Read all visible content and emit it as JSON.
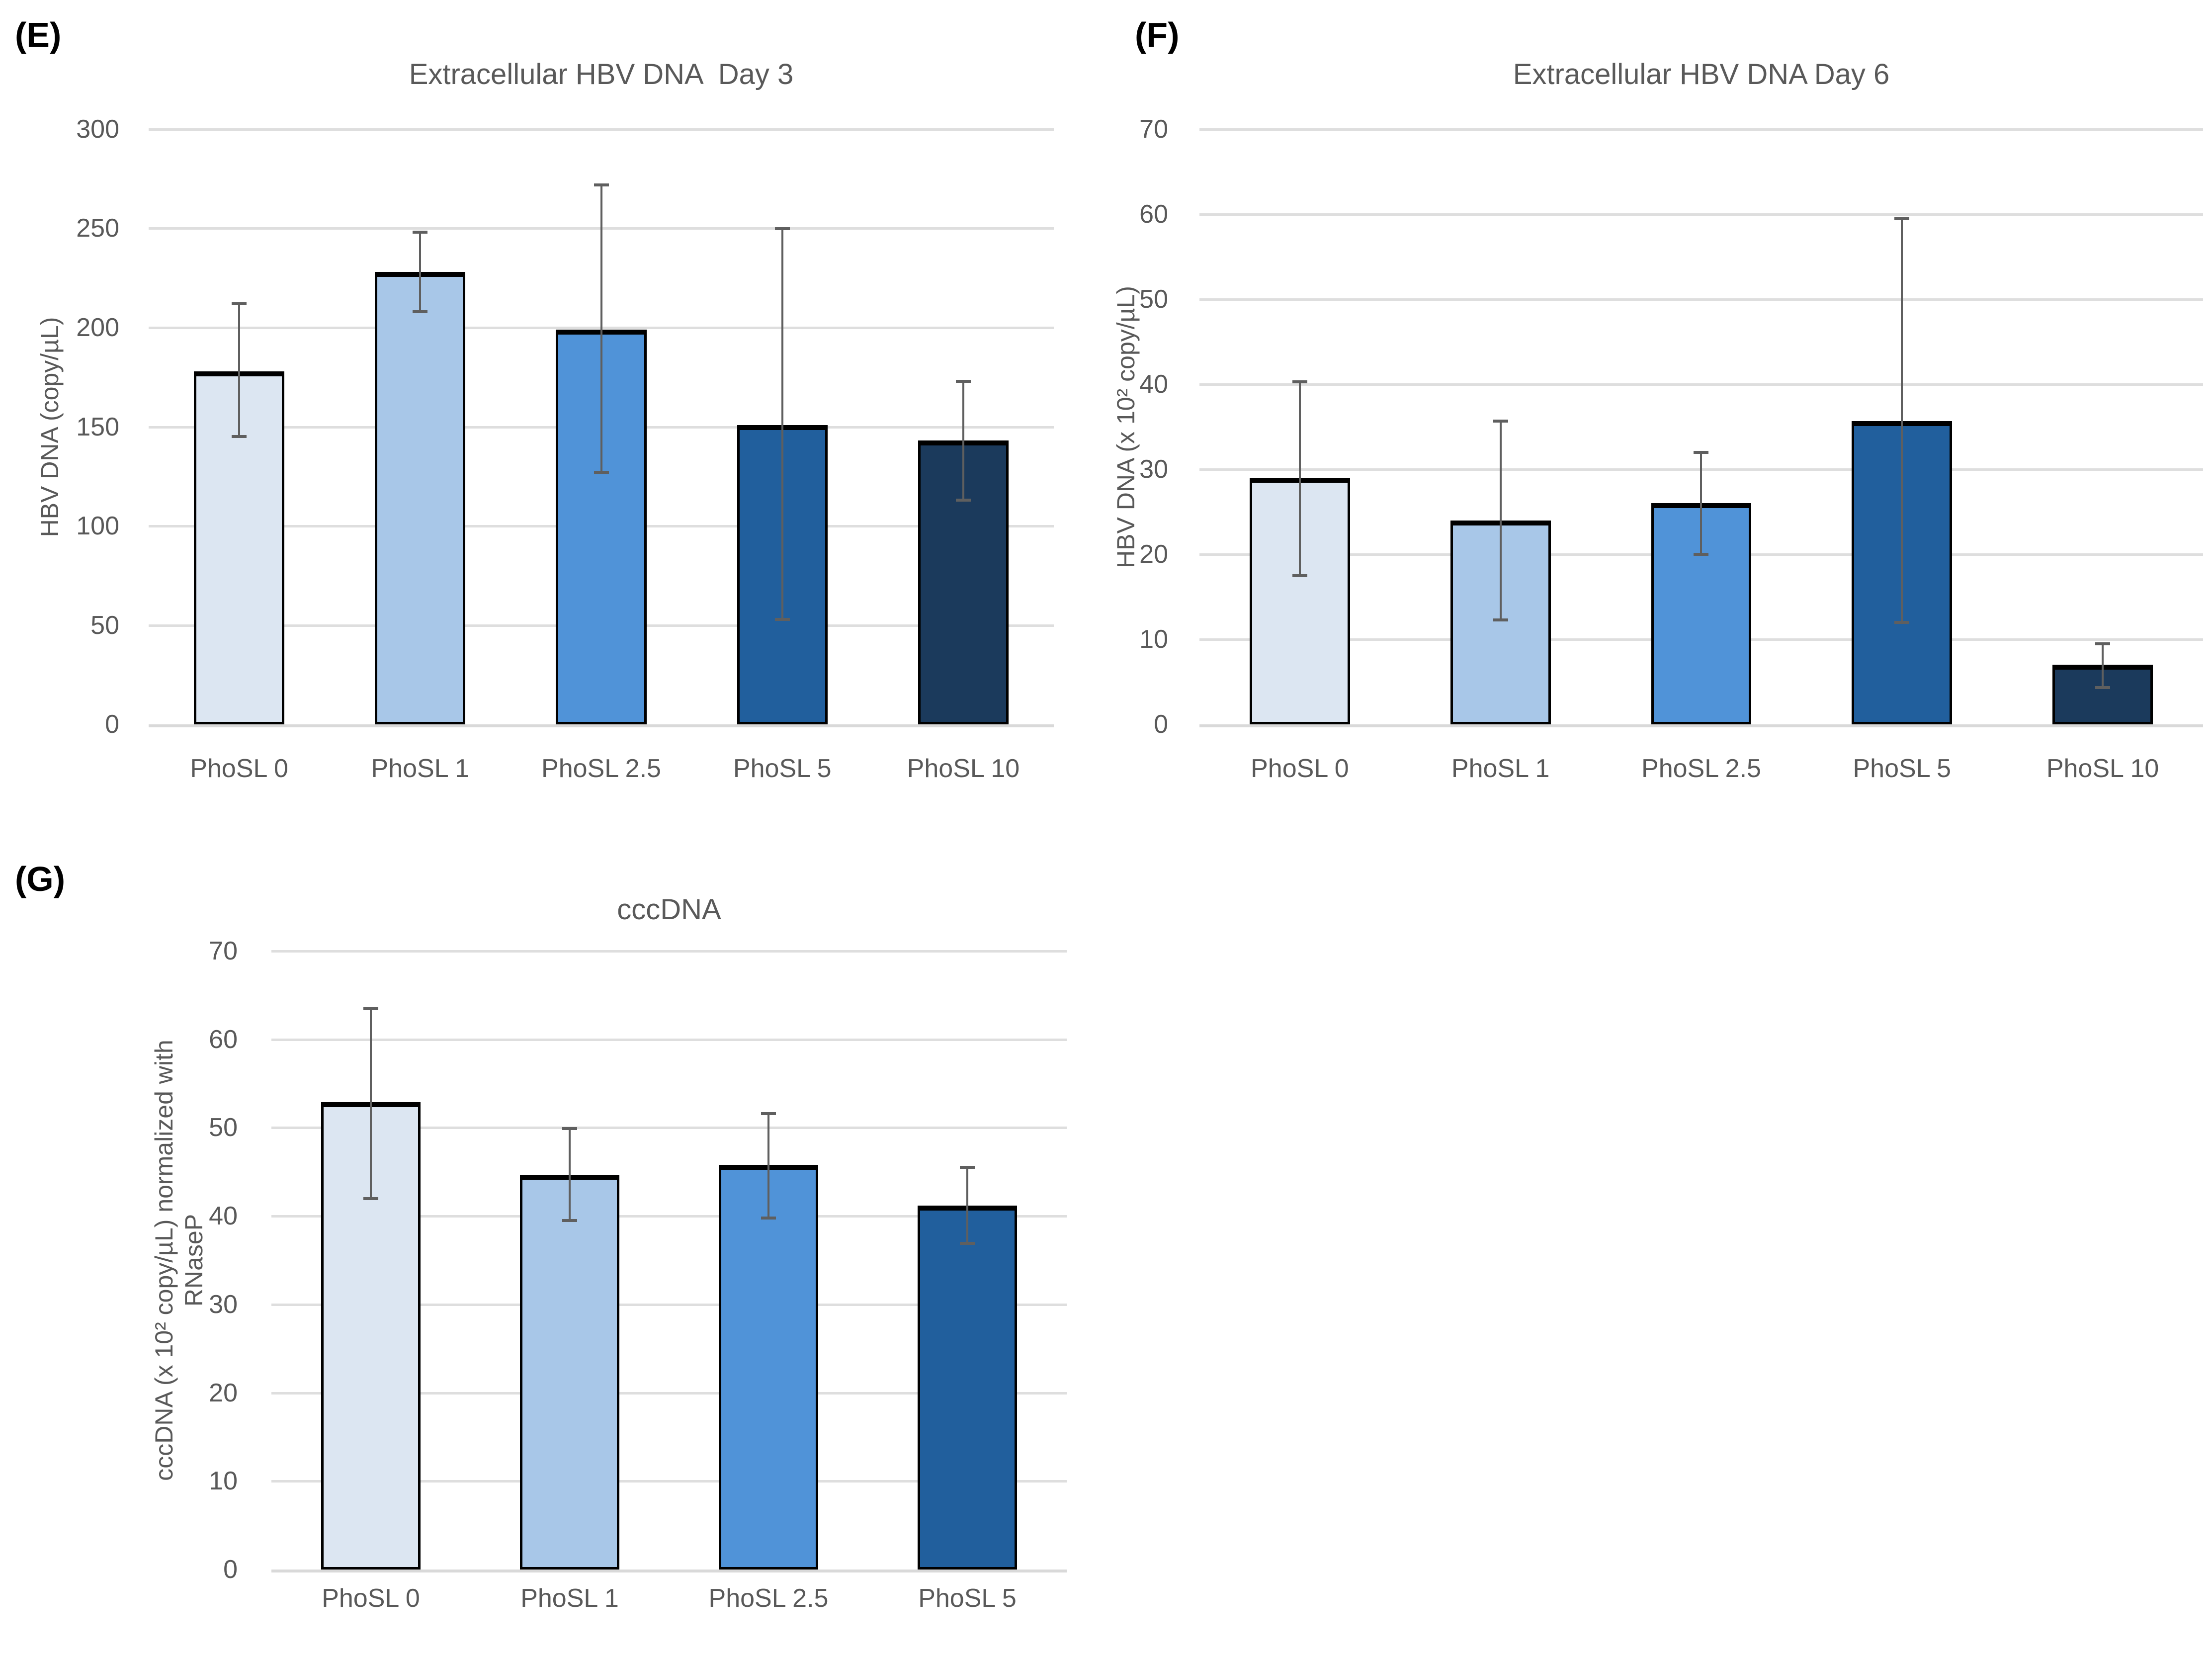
{
  "figure": {
    "background": "#ffffff",
    "text_color": "#595959",
    "grid_color": "#dedede",
    "error_bar_color": "#5f5f5f"
  },
  "chart_data": [
    {
      "type": "bar",
      "panel_label": "(E)",
      "title": "Extracellular HBV DNA  Day 3",
      "ylabel": "HBV DNA (copy/µL)",
      "xlabel": "",
      "ylim": [
        0,
        300
      ],
      "ytick_step": 50,
      "grid": "on",
      "legend": "none",
      "categories": [
        "PhoSL 0",
        "PhoSL 1",
        "PhoSL 2.5",
        "PhoSL 5",
        "PhoSL 10"
      ],
      "values": [
        178,
        228,
        199,
        151,
        143
      ],
      "error_low": [
        145,
        208,
        127,
        53,
        113
      ],
      "error_high": [
        212,
        248,
        272,
        250,
        173
      ],
      "bar_colors": [
        "#dce6f2",
        "#a8c7e8",
        "#5093d8",
        "#215f9d",
        "#1b3a5c"
      ]
    },
    {
      "type": "bar",
      "panel_label": "(F)",
      "title": "Extracellular HBV DNA Day 6",
      "ylabel": "HBV DNA (x 10² copy/µL)",
      "xlabel": "",
      "ylim": [
        0,
        70
      ],
      "ytick_step": 10,
      "grid": "on",
      "legend": "none",
      "categories": [
        "PhoSL 0",
        "PhoSL 1",
        "PhoSL 2.5",
        "PhoSL 5",
        "PhoSL 10"
      ],
      "values": [
        29,
        24,
        26,
        35.7,
        7
      ],
      "error_low": [
        17.5,
        12.3,
        20,
        12,
        4.3
      ],
      "error_high": [
        40.3,
        35.7,
        32,
        59.5,
        9.5
      ],
      "bar_colors": [
        "#dce6f2",
        "#a8c7e8",
        "#5093d8",
        "#215f9d",
        "#1b3a5c"
      ]
    },
    {
      "type": "bar",
      "panel_label": "(G)",
      "title": "cccDNA",
      "ylabel": "cccDNA (x 10² copy/µL) normalized with\nRNaseP",
      "xlabel": "",
      "ylim": [
        0,
        70
      ],
      "ytick_step": 10,
      "grid": "on",
      "legend": "none",
      "categories": [
        "PhoSL 0",
        "PhoSL 1",
        "PhoSL 2.5",
        "PhoSL 5"
      ],
      "values": [
        52.9,
        44.7,
        45.8,
        41.2
      ],
      "error_low": [
        42,
        39.5,
        39.8,
        36.9
      ],
      "error_high": [
        63.5,
        49.9,
        51.6,
        45.5
      ],
      "bar_colors": [
        "#dce6f2",
        "#a8c7e8",
        "#5093d8",
        "#215f9d"
      ]
    }
  ]
}
